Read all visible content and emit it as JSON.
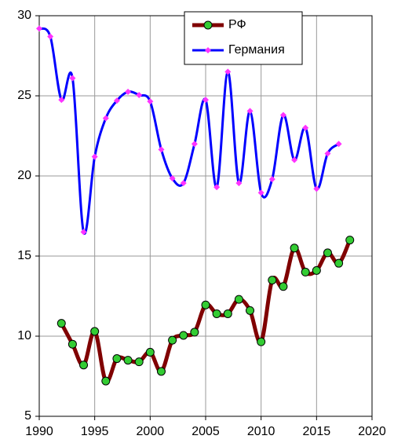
{
  "chart_data": {
    "type": "line",
    "x": [
      1990,
      1991,
      1992,
      1993,
      1994,
      1995,
      1996,
      1997,
      1998,
      1999,
      2000,
      2001,
      2002,
      2003,
      2004,
      2005,
      2006,
      2007,
      2008,
      2009,
      2010,
      2011,
      2012,
      2013,
      2014,
      2015,
      2016,
      2017,
      2018
    ],
    "series": [
      {
        "name": "РФ",
        "color": "#800000",
        "marker_color": "#33cc33",
        "marker": "circle",
        "values": [
          null,
          null,
          10.8,
          9.5,
          8.2,
          10.3,
          7.2,
          8.6,
          8.5,
          8.4,
          9.0,
          7.8,
          9.75,
          10.05,
          10.25,
          11.95,
          11.4,
          11.4,
          12.3,
          11.6,
          9.65,
          13.5,
          13.1,
          15.5,
          14.0,
          14.1,
          15.2,
          14.55,
          16.0
        ]
      },
      {
        "name": "Германия",
        "color": "#0000ff",
        "marker_color": "#ff33ff",
        "marker": "diamond",
        "values": [
          29.2,
          28.7,
          24.75,
          26.1,
          16.5,
          21.2,
          23.6,
          24.7,
          25.25,
          25.05,
          24.65,
          21.65,
          19.85,
          19.55,
          22.0,
          24.75,
          19.3,
          26.5,
          19.55,
          24.05,
          18.95,
          19.8,
          23.8,
          21.0,
          23.0,
          19.2,
          21.4,
          22.0,
          null
        ]
      }
    ],
    "xlim": [
      1990,
      2020
    ],
    "xticks": [
      1990,
      1995,
      2000,
      2005,
      2010,
      2015,
      2020
    ],
    "ylim": [
      5,
      30
    ],
    "yticks": [
      5,
      10,
      15,
      20,
      25,
      30
    ],
    "grid": true,
    "legend": "upper right"
  }
}
